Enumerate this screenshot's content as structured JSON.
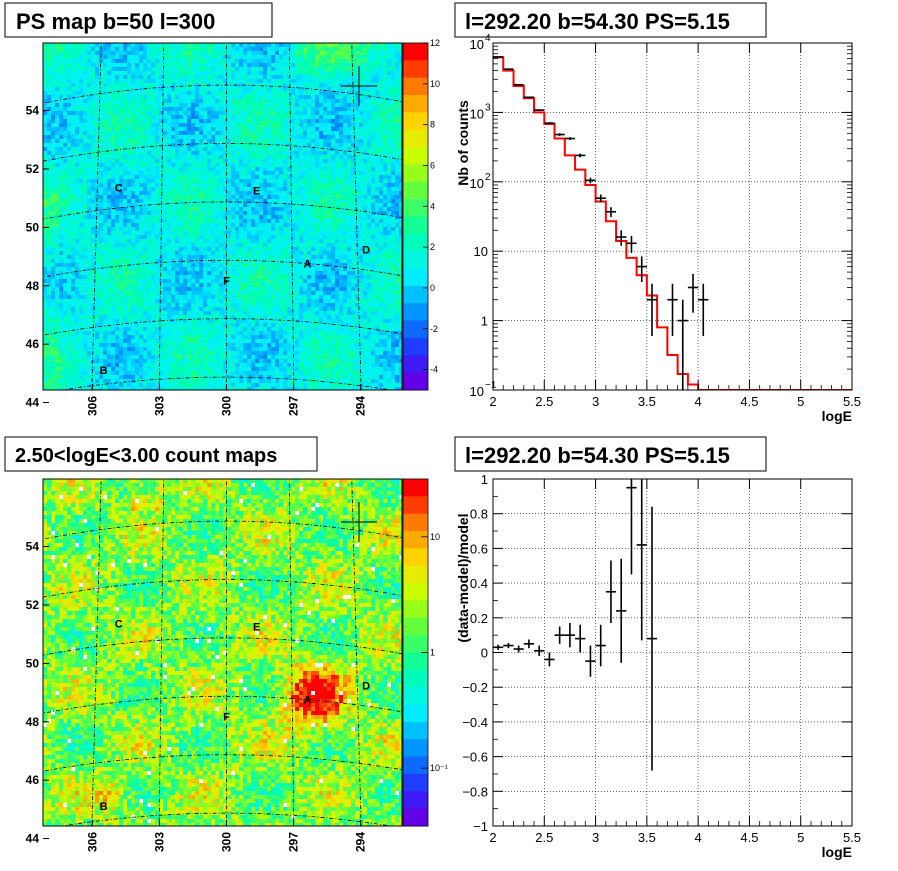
{
  "titles": {
    "ps_map": "PS map b=50 l=300",
    "spectrum": "l=292.20 b=54.30 PS=5.15",
    "count_map": "2.50<logE<3.00 count maps",
    "residual": "l=292.20 b=54.30 PS=5.15"
  },
  "colors": {
    "background": "#ffffff",
    "map_cyan": "#00f0ff",
    "map_green": "#60ff40",
    "model_line": "#ff0000",
    "data_points": "#000000"
  },
  "sky_maps": {
    "lat_ticks": [
      "54",
      "52",
      "50",
      "48",
      "46",
      "44"
    ],
    "lon_ticks": [
      "306",
      "303",
      "300",
      "297",
      "294"
    ],
    "sources": [
      {
        "label": "A",
        "l": 296.3,
        "b": 48.0
      },
      {
        "label": "B",
        "l": 305.5,
        "b": 44.5
      },
      {
        "label": "C",
        "l": 305.0,
        "b": 50.7
      },
      {
        "label": "D",
        "l": 293.6,
        "b": 48.7
      },
      {
        "label": "E",
        "l": 298.6,
        "b": 50.4
      },
      {
        "label": "F",
        "l": 300.0,
        "b": 47.3
      }
    ],
    "ps_colorbar_ticks": [
      "12",
      "10",
      "8",
      "6",
      "4",
      "2",
      "0",
      "-2",
      "-4"
    ],
    "ps_colorbar_range": [
      -5,
      12
    ],
    "count_colorbar_ticks": [
      "10",
      "1",
      "10⁻¹"
    ],
    "count_colorbar_range_log10": [
      -1.5,
      1.5
    ]
  },
  "chart_data": [
    {
      "type": "line",
      "title": "l=292.20 b=54.30 PS=5.15",
      "xlabel": "logE",
      "ylabel": "Nb of counts",
      "xlim": [
        2,
        5.5
      ],
      "ylim": [
        0.1,
        10000
      ],
      "yscale": "log",
      "grid": true,
      "x_ticks": [
        "2",
        "2.5",
        "3",
        "3.5",
        "4",
        "4.5",
        "5",
        "5.5"
      ],
      "y_ticks": [
        {
          "value": 0.1,
          "label": "10",
          "exp": "−1"
        },
        {
          "value": 1,
          "label": "1",
          "exp": ""
        },
        {
          "value": 10,
          "label": "10",
          "exp": ""
        },
        {
          "value": 100,
          "label": "10",
          "exp": "2"
        },
        {
          "value": 1000,
          "label": "10",
          "exp": "3"
        },
        {
          "value": 10000,
          "label": "10",
          "exp": "4"
        }
      ],
      "series": [
        {
          "style": "step",
          "bin_edges": [
            2.0,
            2.1,
            2.2,
            2.3,
            2.4,
            2.5,
            2.6,
            2.7,
            2.8,
            2.9,
            3.0,
            3.1,
            3.2,
            3.3,
            3.4,
            3.5,
            3.6,
            3.7,
            3.8,
            3.9,
            4.0,
            4.1,
            5.5
          ],
          "values": [
            6200,
            4000,
            2400,
            1600,
            1000,
            680,
            420,
            240,
            150,
            90,
            52,
            27,
            14,
            8,
            4.5,
            2.3,
            0.8,
            0.32,
            0.17,
            0.12,
            0.1,
            0.1
          ]
        },
        {
          "style": "errorbar",
          "x": [
            2.05,
            2.15,
            2.25,
            2.35,
            2.45,
            2.55,
            2.65,
            2.75,
            2.85,
            2.95,
            3.05,
            3.15,
            3.25,
            3.35,
            3.45,
            3.55,
            3.75,
            3.85,
            3.95,
            4.05
          ],
          "y": [
            6300,
            4200,
            2500,
            1650,
            1080,
            700,
            480,
            420,
            240,
            105,
            58,
            37,
            16,
            13,
            6,
            2,
            2,
            1,
            3,
            2
          ],
          "yerr_low": [
            80,
            65,
            50,
            40,
            33,
            26,
            22,
            20,
            15,
            10,
            7.6,
            6,
            4,
            3.6,
            2.4,
            1.4,
            1.4,
            0.9,
            1.7,
            1.4
          ],
          "yerr_high": [
            80,
            65,
            50,
            40,
            33,
            26,
            22,
            20,
            15,
            10,
            7.6,
            6,
            4,
            3.6,
            2.4,
            1.4,
            1.4,
            1.0,
            1.7,
            1.4
          ]
        }
      ]
    },
    {
      "type": "scatter",
      "title": "l=292.20 b=54.30 PS=5.15",
      "xlabel": "logE",
      "ylabel": "(data-model)/model",
      "xlim": [
        2,
        5.5
      ],
      "ylim": [
        -1,
        1
      ],
      "grid": true,
      "x_ticks": [
        "2",
        "2.5",
        "3",
        "3.5",
        "4",
        "4.5",
        "5",
        "5.5"
      ],
      "y_ticks": [
        "−1",
        "−0.8",
        "−0.6",
        "−0.4",
        "−0.2",
        "0",
        "0.2",
        "0.4",
        "0.6",
        "0.8",
        "1"
      ],
      "series": [
        {
          "style": "errorbar",
          "x": [
            2.05,
            2.15,
            2.25,
            2.35,
            2.45,
            2.55,
            2.65,
            2.75,
            2.85,
            2.95,
            3.05,
            3.15,
            3.25,
            3.35,
            3.45,
            3.55
          ],
          "y": [
            0.03,
            0.04,
            0.02,
            0.05,
            0.01,
            -0.04,
            0.1,
            0.1,
            0.08,
            -0.05,
            0.04,
            0.35,
            0.24,
            0.95,
            0.62,
            0.08
          ],
          "yerr": [
            0.015,
            0.015,
            0.02,
            0.025,
            0.03,
            0.04,
            0.05,
            0.07,
            0.08,
            0.09,
            0.12,
            0.18,
            0.3,
            0.5,
            0.55,
            0.76
          ]
        }
      ]
    }
  ]
}
